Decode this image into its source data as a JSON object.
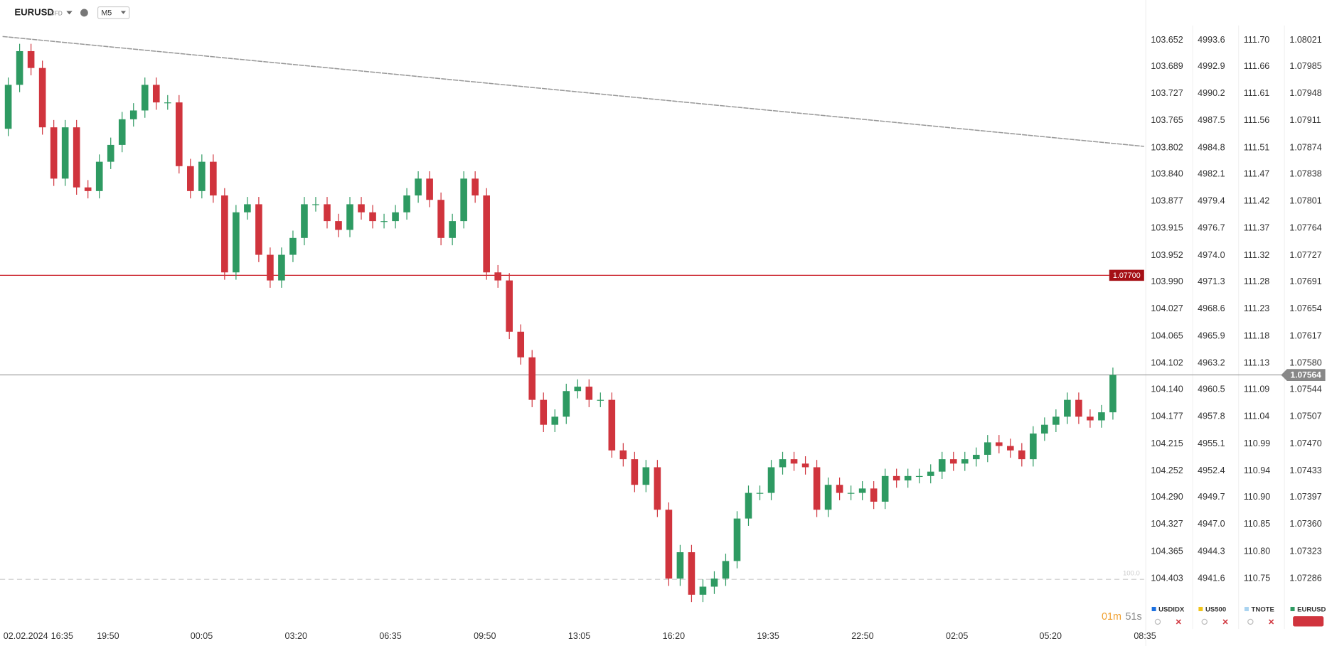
{
  "chart_data": {
    "type": "candlestick",
    "title": "EURUSD",
    "subtitle": "CFD",
    "timeframe": "M5",
    "countdown": [
      "01m",
      "51s"
    ],
    "up_color": "#2e9a62",
    "down_color": "#d0343d",
    "open": [
      1.079,
      1.0796,
      1.08006,
      1.07983,
      1.07902,
      1.07832,
      1.07902,
      1.0782,
      1.07815,
      1.07855,
      1.07878,
      1.07913,
      1.07925,
      1.0796,
      1.07936,
      1.07936,
      1.07849,
      1.07815,
      1.07855,
      1.07809,
      1.07704,
      1.07786,
      1.07797,
      1.07728,
      1.07693,
      1.07728,
      1.07751,
      1.07797,
      1.07797,
      1.07774,
      1.07762,
      1.07797,
      1.07786,
      1.07774,
      1.07774,
      1.07786,
      1.07809,
      1.07832,
      1.07803,
      1.07751,
      1.07774,
      1.07832,
      1.07809,
      1.07704,
      1.07693,
      1.07623,
      1.07588,
      1.0753,
      1.07496,
      1.07507,
      1.07542,
      1.07548,
      1.0753,
      1.0753,
      1.07461,
      1.07449,
      1.07414,
      1.07438,
      1.0738,
      1.07286,
      1.07322,
      1.07264,
      1.07275,
      1.07286,
      1.0731,
      1.07368,
      1.07403,
      1.07403,
      1.07438,
      1.07449,
      1.07443,
      1.07438,
      1.0738,
      1.07414,
      1.07403,
      1.07403,
      1.07409,
      1.07391,
      1.07426,
      1.0742,
      1.07426,
      1.07426,
      1.07432,
      1.07449,
      1.07443,
      1.07449,
      1.07455,
      1.07472,
      1.07467,
      1.07461,
      1.07449,
      1.07484,
      1.07496,
      1.07507,
      1.0753,
      1.07507,
      1.07502,
      1.07513
    ],
    "high": [
      1.0797,
      1.08016,
      1.08016,
      1.07993,
      1.07912,
      1.07912,
      1.07912,
      1.0783,
      1.07865,
      1.07888,
      1.07923,
      1.07935,
      1.0797,
      1.0797,
      1.07946,
      1.07946,
      1.07859,
      1.07865,
      1.07865,
      1.07819,
      1.07796,
      1.07807,
      1.07807,
      1.07738,
      1.07738,
      1.07761,
      1.07807,
      1.07807,
      1.07807,
      1.07784,
      1.07807,
      1.07807,
      1.07796,
      1.07784,
      1.07796,
      1.07819,
      1.07842,
      1.07842,
      1.07813,
      1.07784,
      1.07842,
      1.07842,
      1.07819,
      1.07714,
      1.07703,
      1.07633,
      1.07598,
      1.0754,
      1.07517,
      1.07552,
      1.07558,
      1.07558,
      1.0754,
      1.0754,
      1.07471,
      1.07459,
      1.07448,
      1.07448,
      1.0739,
      1.07332,
      1.07332,
      1.07285,
      1.07296,
      1.0732,
      1.07378,
      1.07413,
      1.07413,
      1.07448,
      1.07459,
      1.07459,
      1.07453,
      1.07448,
      1.07424,
      1.07424,
      1.07413,
      1.07419,
      1.07419,
      1.07436,
      1.07436,
      1.07436,
      1.07436,
      1.07442,
      1.07459,
      1.07459,
      1.07459,
      1.07465,
      1.07482,
      1.07482,
      1.07477,
      1.07471,
      1.07494,
      1.07506,
      1.07517,
      1.0754,
      1.0754,
      1.07517,
      1.07523,
      1.07574
    ],
    "low": [
      1.0789,
      1.0795,
      1.07973,
      1.07892,
      1.07822,
      1.07822,
      1.0781,
      1.07805,
      1.07805,
      1.07845,
      1.07868,
      1.07903,
      1.07915,
      1.07926,
      1.07926,
      1.07839,
      1.07805,
      1.07805,
      1.07799,
      1.07694,
      1.07694,
      1.07776,
      1.07718,
      1.07683,
      1.07683,
      1.07718,
      1.07741,
      1.07787,
      1.07764,
      1.07752,
      1.07752,
      1.07776,
      1.07764,
      1.07764,
      1.07764,
      1.07776,
      1.07799,
      1.07793,
      1.07741,
      1.07741,
      1.07764,
      1.07799,
      1.07694,
      1.07683,
      1.07613,
      1.07578,
      1.0752,
      1.07486,
      1.07486,
      1.07497,
      1.07532,
      1.0752,
      1.0752,
      1.07451,
      1.07439,
      1.07404,
      1.07404,
      1.0737,
      1.07276,
      1.07276,
      1.07254,
      1.07254,
      1.07265,
      1.07276,
      1.073,
      1.07358,
      1.07393,
      1.07393,
      1.07428,
      1.07433,
      1.07428,
      1.0737,
      1.0737,
      1.07393,
      1.07393,
      1.07393,
      1.07381,
      1.07381,
      1.0741,
      1.0741,
      1.07416,
      1.07416,
      1.07422,
      1.07433,
      1.07433,
      1.07439,
      1.07445,
      1.07457,
      1.07451,
      1.07439,
      1.07439,
      1.07474,
      1.07486,
      1.07497,
      1.07497,
      1.07492,
      1.07492,
      1.07503
    ],
    "close": [
      1.0796,
      1.08006,
      1.07983,
      1.07902,
      1.07832,
      1.07902,
      1.0782,
      1.07815,
      1.07855,
      1.07878,
      1.07913,
      1.07925,
      1.0796,
      1.07936,
      1.07936,
      1.07849,
      1.07815,
      1.07855,
      1.07809,
      1.07704,
      1.07786,
      1.07797,
      1.07728,
      1.07693,
      1.07728,
      1.07751,
      1.07797,
      1.07797,
      1.07774,
      1.07762,
      1.07797,
      1.07786,
      1.07774,
      1.07774,
      1.07786,
      1.07809,
      1.07832,
      1.07803,
      1.07751,
      1.07774,
      1.07832,
      1.07809,
      1.07704,
      1.07693,
      1.07623,
      1.07588,
      1.0753,
      1.07496,
      1.07507,
      1.07542,
      1.07548,
      1.0753,
      1.0753,
      1.07461,
      1.07449,
      1.07414,
      1.07438,
      1.0738,
      1.07286,
      1.07322,
      1.07264,
      1.07275,
      1.07286,
      1.0731,
      1.07368,
      1.07403,
      1.07403,
      1.07438,
      1.07449,
      1.07443,
      1.07438,
      1.0738,
      1.07414,
      1.07403,
      1.07403,
      1.07409,
      1.07391,
      1.07426,
      1.0742,
      1.07426,
      1.07426,
      1.07432,
      1.07449,
      1.07443,
      1.07449,
      1.07455,
      1.07472,
      1.07467,
      1.07461,
      1.07449,
      1.07484,
      1.07496,
      1.07507,
      1.0753,
      1.07507,
      1.07502,
      1.07513,
      1.07564
    ],
    "ylim": [
      1.07223,
      1.08041
    ],
    "yticks": [
      1.08021,
      1.07985,
      1.07948,
      1.07911,
      1.07874,
      1.07838,
      1.07801,
      1.07764,
      1.07727,
      1.07691,
      1.07654,
      1.07617,
      {
        "value": 1.0758,
        "label": "1.07580"
      },
      1.07544,
      1.07507,
      {
        "value": 1.0747,
        "label": "1.07470"
      },
      1.07433,
      1.07397,
      {
        "value": 1.0736,
        "label": "1.07360"
      },
      1.07323,
      1.07286
    ],
    "x_labels": [
      "02.02.2024",
      "16:35",
      "19:50",
      "00:05",
      "03:20",
      "06:35",
      "09:50",
      "13:05",
      "16:20",
      "19:35",
      "22:50",
      "02:05",
      "05:20",
      "08:35"
    ],
    "level_line": {
      "value": 1.077,
      "label": "1.07700",
      "color": "#c8141e"
    },
    "price_line": {
      "value": 1.07564,
      "label": "1.07564"
    },
    "trend_line": {
      "start": 1.08026,
      "end": 1.07876
    },
    "fib_line": {
      "value": 1.07285,
      "label": "100.0"
    },
    "side_axes": [
      {
        "name": "USDIDX",
        "color": "#1a6fe0",
        "labels": [
          "103.652",
          "103.689",
          "103.727",
          "103.765",
          "103.802",
          "103.840",
          "103.877",
          "103.915",
          "103.952",
          "103.990",
          "104.027",
          "104.065",
          "104.102",
          "104.140",
          "104.177",
          "104.215",
          "104.252",
          "104.290",
          "104.327",
          "104.365",
          "104.403"
        ]
      },
      {
        "name": "US500",
        "color": "#f0c419",
        "labels": [
          "4993.6",
          "4992.9",
          "4990.2",
          "4987.5",
          "4984.8",
          "4982.1",
          "4979.4",
          "4976.7",
          "4974.0",
          "4971.3",
          "4968.6",
          "4965.9",
          "4963.2",
          "4960.5",
          "4957.8",
          "4955.1",
          "4952.4",
          "4949.7",
          "4947.0",
          "4944.3",
          "4941.6"
        ]
      },
      {
        "name": "TNOTE",
        "color": "#a9d3f0",
        "labels": [
          "111.70",
          "111.66",
          "111.61",
          "111.56",
          "111.51",
          "111.47",
          "111.42",
          "111.37",
          "111.32",
          "111.28",
          "111.23",
          "111.18",
          "111.13",
          "111.09",
          "111.04",
          "110.99",
          "110.94",
          "110.90",
          "110.85",
          "110.80",
          "110.75"
        ]
      }
    ]
  }
}
